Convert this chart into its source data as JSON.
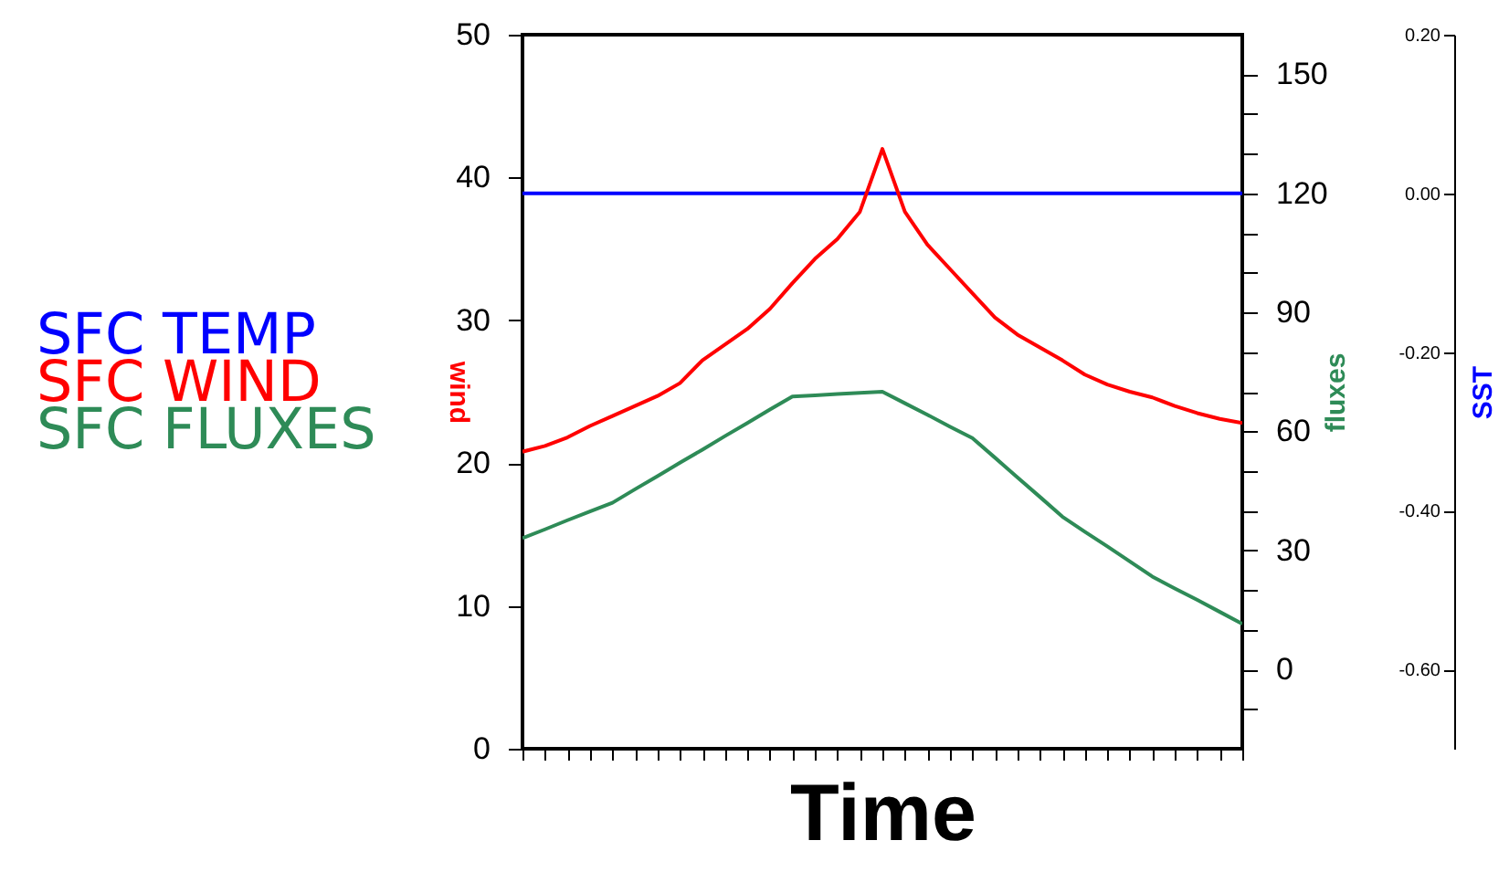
{
  "chart_data": {
    "type": "line",
    "xlabel": "Time",
    "ylabel": "wind",
    "y2label": "fluxes",
    "y3label": "SST",
    "categories": [
      null,
      null,
      null,
      null,
      null,
      null,
      null,
      null,
      null,
      null,
      null,
      null,
      null,
      null,
      null,
      null,
      null,
      null,
      null,
      null,
      null,
      null,
      null,
      null,
      null,
      null,
      null,
      null,
      null,
      null,
      null,
      null,
      null
    ],
    "ylim": [
      0,
      50
    ],
    "yticks": [
      0,
      10,
      20,
      30,
      40,
      50
    ],
    "y2lim": [
      -20,
      160
    ],
    "y2ticks": [
      {
        "value": -10,
        "label": null
      },
      0,
      {
        "value": 10,
        "label": null
      },
      {
        "value": 20,
        "label": null
      },
      30,
      {
        "value": 40,
        "label": null
      },
      {
        "value": 50,
        "label": null
      },
      60,
      {
        "value": 70,
        "label": null
      },
      {
        "value": 80,
        "label": null
      },
      90,
      {
        "value": 100,
        "label": null
      },
      {
        "value": 110,
        "label": null
      },
      120,
      {
        "value": 130,
        "label": null
      },
      {
        "value": 140,
        "label": null
      },
      150
    ],
    "y3lim": [
      -0.7,
      0.2
    ],
    "y3ticks": [
      {
        "value": 0.2,
        "label": "0.20"
      },
      {
        "value": 0,
        "label": "0.00"
      },
      {
        "value": -0.2,
        "label": "-0.20"
      },
      {
        "value": -0.4,
        "label": "-0.40"
      },
      {
        "value": -0.6,
        "label": "-0.60"
      }
    ],
    "grid": false,
    "line_style": "solid",
    "marker": "none",
    "series": [
      {
        "name": "SFC TEMP",
        "color": "#0000ff",
        "axis": "y3",
        "values": [
          0,
          0,
          0,
          0,
          0,
          0,
          0,
          0,
          0,
          0,
          0,
          0,
          0,
          0,
          0,
          0,
          0,
          0,
          0,
          0,
          0,
          0,
          0,
          0,
          0,
          0,
          0,
          0,
          0,
          0,
          0,
          0,
          0
        ]
      },
      {
        "name": "SFC WIND",
        "color": "#ff0000",
        "axis": "y",
        "values": [
          20.8,
          21.2,
          21.8,
          22.6,
          23.3,
          24.0,
          24.7,
          25.6,
          27.2,
          28.3,
          29.4,
          30.8,
          32.6,
          34.3,
          35.7,
          37.6,
          42.0,
          37.6,
          35.3,
          33.6,
          31.9,
          30.2,
          29.0,
          28.1,
          27.2,
          26.2,
          25.5,
          25.0,
          24.6,
          24.0,
          23.5,
          23.1,
          22.8
        ]
      },
      {
        "name": "SFC FLUXES",
        "color": "#2e8b57",
        "axis": "y2",
        "values": [
          33.1,
          35.3,
          37.6,
          39.8,
          42.0,
          45.4,
          48.7,
          52.1,
          55.4,
          58.8,
          62.1,
          65.5,
          68.8,
          69.1,
          69.4,
          69.7,
          70.0,
          67.1,
          64.2,
          61.2,
          58.3,
          53.4,
          48.4,
          43.5,
          38.5,
          34.7,
          31.0,
          27.2,
          23.4,
          20.4,
          17.5,
          14.5,
          11.5
        ]
      }
    ]
  }
}
